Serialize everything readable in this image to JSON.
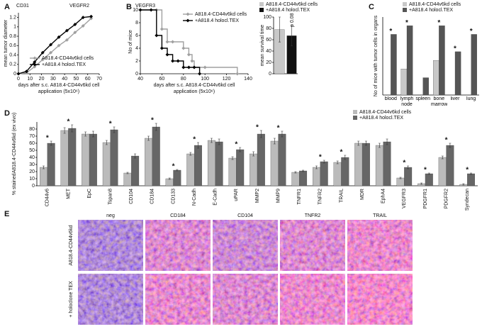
{
  "panel_labels": [
    "A",
    "B",
    "C",
    "D",
    "E"
  ],
  "chart_data": [
    {
      "type": "line",
      "annotations": [
        "CD31",
        "VEGFR2"
      ],
      "y_label": "mean tumor diameter",
      "x_label": [
        "days after s.c. A818.4-CD44v6kd cell",
        "application (5x10⁶)"
      ],
      "x": [
        0,
        7,
        14,
        21,
        28,
        35,
        42,
        49,
        56,
        63
      ],
      "series": [
        {
          "name": "A818.4-CD44v6kd cells",
          "color": "#a0a0a0",
          "values": [
            0,
            0.02,
            0.15,
            0.3,
            0.45,
            0.6,
            0.72,
            0.88,
            1.02,
            1.18
          ]
        },
        {
          "name": "+A818.4 holocl.TEX",
          "color": "#000000",
          "values": [
            0,
            0.05,
            0.25,
            0.45,
            0.62,
            0.78,
            0.92,
            1.05,
            1.2,
            1.22
          ]
        }
      ],
      "xlim": [
        0,
        70
      ],
      "xticks": [
        0,
        10,
        20,
        30,
        40,
        50,
        60,
        70
      ],
      "ylim": [
        0,
        1.3
      ],
      "yticks": [
        0,
        0.2,
        0.4,
        0.6,
        0.8,
        1,
        1.2
      ],
      "legend": "lower right"
    },
    {
      "type": "line",
      "step": true,
      "annotations": [
        "VEGFR3"
      ],
      "y_label": "No of mice",
      "x_label": [
        "days after s.c. A818.4-CD44v6kd cell",
        "application (5x10⁶)"
      ],
      "series": [
        {
          "name": "A818.4-CD44v6kd cells",
          "color": "#a0a0a0",
          "x": [
            40,
            55,
            60,
            65,
            70,
            80,
            85,
            88,
            90,
            100,
            130
          ],
          "values": [
            10,
            10,
            7,
            5,
            5,
            4,
            3,
            2,
            1,
            1,
            0
          ]
        },
        {
          "name": "+A818.4 holocl.TEX",
          "color": "#000000",
          "x": [
            40,
            50,
            55,
            60,
            65,
            70,
            75,
            80,
            85,
            90,
            95
          ],
          "values": [
            10,
            10,
            6,
            4,
            3,
            2,
            2,
            1,
            1,
            1,
            0
          ]
        }
      ],
      "xlim": [
        40,
        140
      ],
      "xticks": [
        40,
        60,
        80,
        100,
        120,
        140
      ],
      "ylim": [
        0,
        10
      ],
      "yticks": [
        0,
        2,
        4,
        6,
        8,
        10
      ],
      "legend": "upper right"
    },
    {
      "type": "bar",
      "y_label": "mean survival time",
      "categories": [
        null,
        null
      ],
      "values": [
        78,
        67
      ],
      "errors": [
        22,
        18
      ],
      "colors": [
        "#c8c8c8",
        "#111111"
      ],
      "legend_names": [
        "A818.4-CD44v6kd cells",
        "+A818.4 holocl.TEX"
      ],
      "annotations": [
        "p 0.08"
      ],
      "ylim": [
        0,
        100
      ],
      "yticks": [
        0,
        20,
        40,
        60,
        80,
        100
      ]
    },
    {
      "type": "bar",
      "y_label": "No of mice with tumor cells in organs",
      "categories": [
        "blood",
        "lymph node",
        "spleen",
        "bone marrow",
        "liver",
        "lung"
      ],
      "series": [
        {
          "name": "A818.4-CD44v6kd cells",
          "color": "#c8c8c8",
          "values": [
            0,
            3,
            0,
            4,
            0,
            0
          ]
        },
        {
          "name": "+A818.4 holocl.TEX",
          "color": "#555555",
          "values": [
            7,
            8,
            2,
            8,
            5,
            7
          ]
        }
      ],
      "significant": [
        true,
        true,
        false,
        true,
        true,
        true
      ],
      "sig_marker": "*",
      "ylim": [
        0,
        9
      ],
      "legend": "upper right"
    },
    {
      "type": "bar",
      "y_label": "% stainedA818.4-CD44v6kd (ex vivo)",
      "categories": [
        "CD44v6",
        "MET",
        "EpC",
        "Tspan8",
        "CD104",
        "CD184",
        "CD133",
        "N-Cadh",
        "E-Cadh",
        "uPAR",
        "MMP2",
        "MMP9",
        "TNFR1",
        "TNFR2",
        "TRAIL",
        "MDR",
        "EphA4",
        "VEGFR3",
        "PDGFR1",
        "PDGFR2",
        "Syndecan"
      ],
      "series": [
        {
          "name": "A818.4-CD44v6kd cells",
          "color": "#bbbbbb",
          "values": [
            26,
            78,
            73,
            61,
            18,
            67,
            10,
            45,
            64,
            39,
            45,
            63,
            19,
            26,
            33,
            60,
            57,
            11,
            3,
            40,
            2
          ],
          "errors": [
            2,
            4,
            3,
            3,
            1,
            3,
            1,
            2,
            3,
            2,
            3,
            4,
            1,
            2,
            2,
            3,
            3,
            1,
            1,
            2,
            1
          ]
        },
        {
          "name": "+A818.4 holocl.TEX",
          "color": "#666666",
          "values": [
            60,
            81,
            73,
            79,
            42,
            83,
            22,
            57,
            62,
            51,
            73,
            73,
            21,
            34,
            40,
            60,
            62,
            26,
            17,
            57,
            17
          ],
          "errors": [
            3,
            5,
            4,
            4,
            3,
            5,
            1,
            4,
            4,
            3,
            5,
            4,
            1,
            2,
            3,
            3,
            4,
            2,
            1,
            3,
            1
          ]
        }
      ],
      "significant": [
        true,
        true,
        false,
        true,
        false,
        true,
        true,
        true,
        false,
        true,
        true,
        true,
        false,
        true,
        true,
        false,
        false,
        true,
        true,
        true,
        true
      ],
      "sig_marker": "*",
      "ylim": [
        0,
        90
      ],
      "yticks": [
        0,
        10,
        20,
        30,
        40,
        50,
        60,
        70,
        80
      ],
      "legend": "upper right"
    }
  ],
  "micrographs": {
    "columns": [
      "neg",
      "CD184",
      "CD104",
      "TNFR2",
      "TRAIL"
    ],
    "rows": [
      "A818.4-CD44v6kd",
      "+ holoclone TEX"
    ]
  }
}
